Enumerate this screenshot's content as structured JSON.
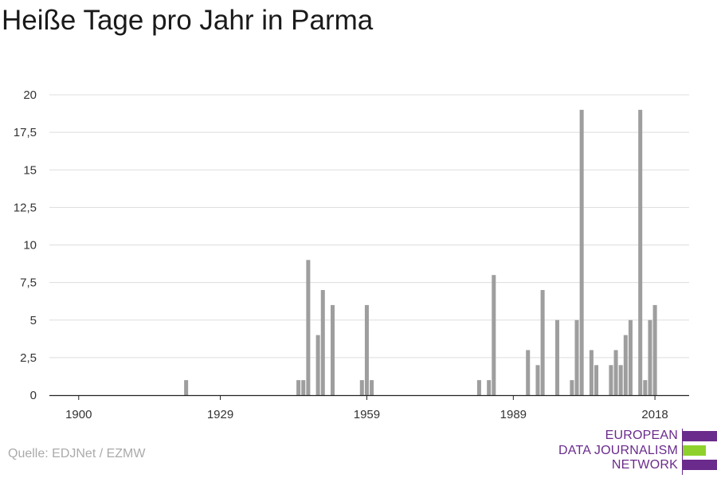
{
  "title": "Heiße Tage pro Jahr in Parma",
  "source": "Quelle: EDJNet / EZMW",
  "logo": {
    "lines": [
      "EUROPEAN",
      "DATA JOURNALISM",
      "NETWORK"
    ],
    "colors": {
      "purple": "#6a2b8c",
      "green": "#8ed12c"
    }
  },
  "chart_data": {
    "type": "bar",
    "title": "",
    "xlabel": "",
    "ylabel": "",
    "xlim": [
      1894,
      2025
    ],
    "ylim": [
      0,
      20
    ],
    "x_ticks": [
      1900,
      1929,
      1959,
      1989,
      2018
    ],
    "y_ticks": [
      0,
      2.5,
      5,
      7.5,
      10,
      12.5,
      15,
      17.5,
      20
    ],
    "y_tick_labels": [
      "0",
      "2,5",
      "5",
      "7,5",
      "10",
      "12,5",
      "15",
      "17,5",
      "20"
    ],
    "grid": true,
    "bar_color": "#9e9e9e",
    "series": [
      {
        "x": [
          1900,
          1901,
          1902,
          1903,
          1904,
          1905,
          1906,
          1907,
          1908,
          1909,
          1910,
          1911,
          1912,
          1913,
          1914,
          1915,
          1916,
          1917,
          1918,
          1919,
          1920,
          1921,
          1922,
          1923,
          1924,
          1925,
          1926,
          1927,
          1928,
          1929,
          1930,
          1931,
          1932,
          1933,
          1934,
          1935,
          1936,
          1937,
          1938,
          1939,
          1940,
          1941,
          1942,
          1943,
          1944,
          1945,
          1946,
          1947,
          1948,
          1949,
          1950,
          1951,
          1952,
          1953,
          1954,
          1955,
          1956,
          1957,
          1958,
          1959,
          1960,
          1961,
          1962,
          1963,
          1964,
          1965,
          1966,
          1967,
          1968,
          1969,
          1970,
          1971,
          1972,
          1973,
          1974,
          1975,
          1976,
          1977,
          1978,
          1979,
          1980,
          1981,
          1982,
          1983,
          1984,
          1985,
          1986,
          1987,
          1988,
          1989,
          1990,
          1991,
          1992,
          1993,
          1994,
          1995,
          1996,
          1997,
          1998,
          1999,
          2000,
          2001,
          2002,
          2003,
          2004,
          2005,
          2006,
          2007,
          2008,
          2009,
          2010,
          2011,
          2012,
          2013,
          2014,
          2015,
          2016,
          2017,
          2018,
          2019
        ],
        "values": [
          0,
          0,
          0,
          0,
          0,
          0,
          0,
          0,
          0,
          0,
          0,
          0,
          0,
          0,
          0,
          0,
          0,
          0,
          0,
          0,
          0,
          0,
          1,
          0,
          0,
          0,
          0,
          0,
          0,
          0,
          0,
          0,
          0,
          0,
          0,
          0,
          0,
          0,
          0,
          0,
          0,
          0,
          0,
          0,
          0,
          1,
          1,
          9,
          0,
          4,
          7,
          0,
          6,
          0,
          0,
          0,
          0,
          0,
          1,
          6,
          1,
          0,
          0,
          0,
          0,
          0,
          0,
          0,
          0,
          0,
          0,
          0,
          0,
          0,
          0,
          0,
          0,
          0,
          0,
          0,
          0,
          0,
          1,
          0,
          1,
          8,
          0,
          0,
          0,
          0,
          0,
          0,
          3,
          0,
          2,
          7,
          0,
          0,
          5,
          0,
          0,
          1,
          5,
          19,
          0,
          3,
          2,
          0,
          0,
          2,
          3,
          2,
          4,
          5,
          0,
          19,
          1,
          5,
          6,
          0
        ]
      }
    ]
  }
}
